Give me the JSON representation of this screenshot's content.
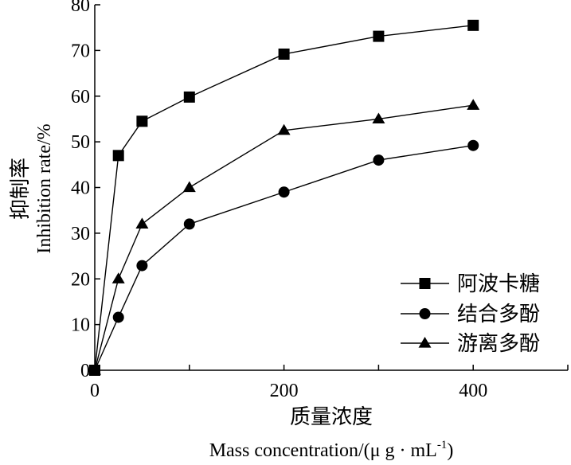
{
  "chart_data": {
    "type": "line",
    "x": [
      0,
      25,
      50,
      100,
      200,
      300,
      400
    ],
    "series": [
      {
        "name": "阿波卡糖",
        "marker": "square",
        "values": [
          0,
          47,
          54.5,
          59.8,
          69.2,
          73.1,
          75.5
        ]
      },
      {
        "name": "结合多酚",
        "marker": "circle",
        "values": [
          0,
          11.6,
          22.9,
          32,
          39,
          46,
          49.2
        ]
      },
      {
        "name": "游离多酚",
        "marker": "triangle",
        "values": [
          0,
          20,
          32,
          40,
          52.5,
          55,
          58
        ]
      }
    ],
    "xlabel": "质量浓度",
    "xlabel_en": "Mass concentration/(μ g · mL",
    "xlabel_en_sup": "-1",
    "xlabel_en_end": ")",
    "ylabel": "抑制率",
    "ylabel_en": "Inhibition rate/%",
    "xlim": [
      0,
      500
    ],
    "ylim": [
      0,
      80
    ],
    "xticks": [
      0,
      200,
      400
    ],
    "xtick_labels": [
      "0",
      "200",
      "400"
    ],
    "yticks": [
      0,
      10,
      20,
      30,
      40,
      50,
      60,
      70,
      80
    ],
    "ytick_labels": [
      "0",
      "10",
      "20",
      "30",
      "40",
      "50",
      "60",
      "70",
      "80"
    ],
    "legend_position": "bottom-right",
    "grid": false,
    "color": "#000000"
  }
}
